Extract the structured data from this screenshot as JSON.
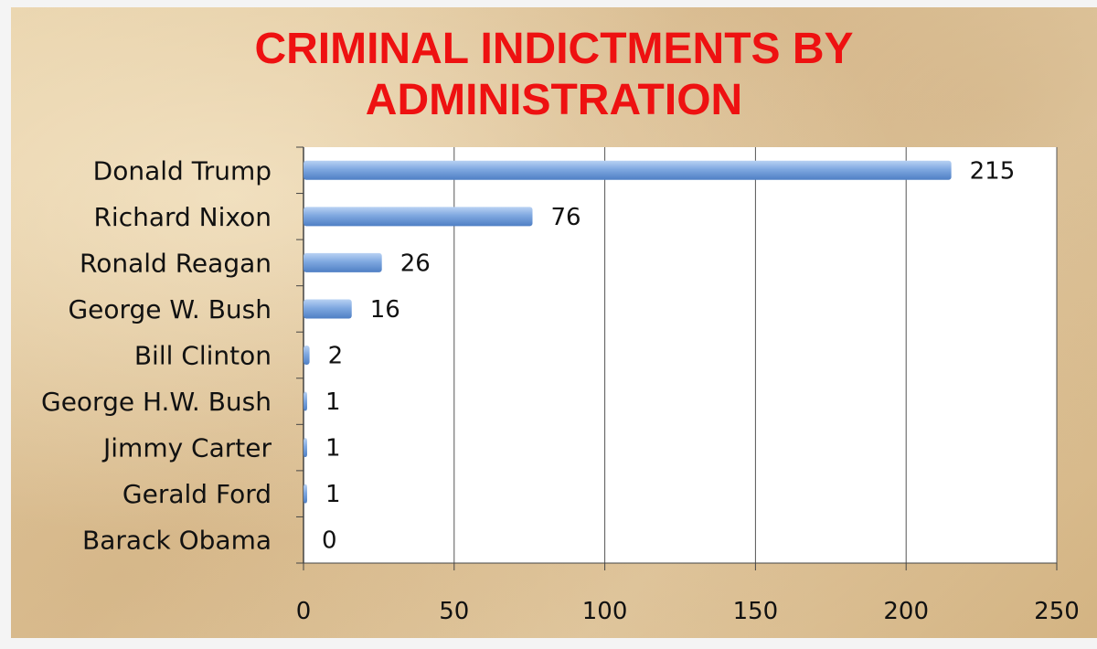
{
  "chart_data": {
    "type": "bar",
    "orientation": "horizontal",
    "title": [
      "CRIMINAL INDICTMENTS BY",
      "ADMINISTRATION"
    ],
    "categories": [
      "Donald Trump",
      "Richard Nixon",
      "Ronald Reagan",
      "George W. Bush",
      "Bill Clinton",
      "George H.W. Bush",
      "Jimmy Carter",
      "Gerald Ford",
      "Barack Obama"
    ],
    "values": [
      215,
      76,
      26,
      16,
      2,
      1,
      1,
      1,
      0
    ],
    "xlim": [
      0,
      250
    ],
    "xticks": [
      0,
      50,
      100,
      150,
      200,
      250
    ],
    "grid": "vertical",
    "legend": "none",
    "colors": {
      "bar": "#7fa8e0",
      "bar_dark": "#4f7fc4",
      "title": "#ee1111",
      "grid": "#555555",
      "plot_bg": "#ffffff"
    }
  }
}
